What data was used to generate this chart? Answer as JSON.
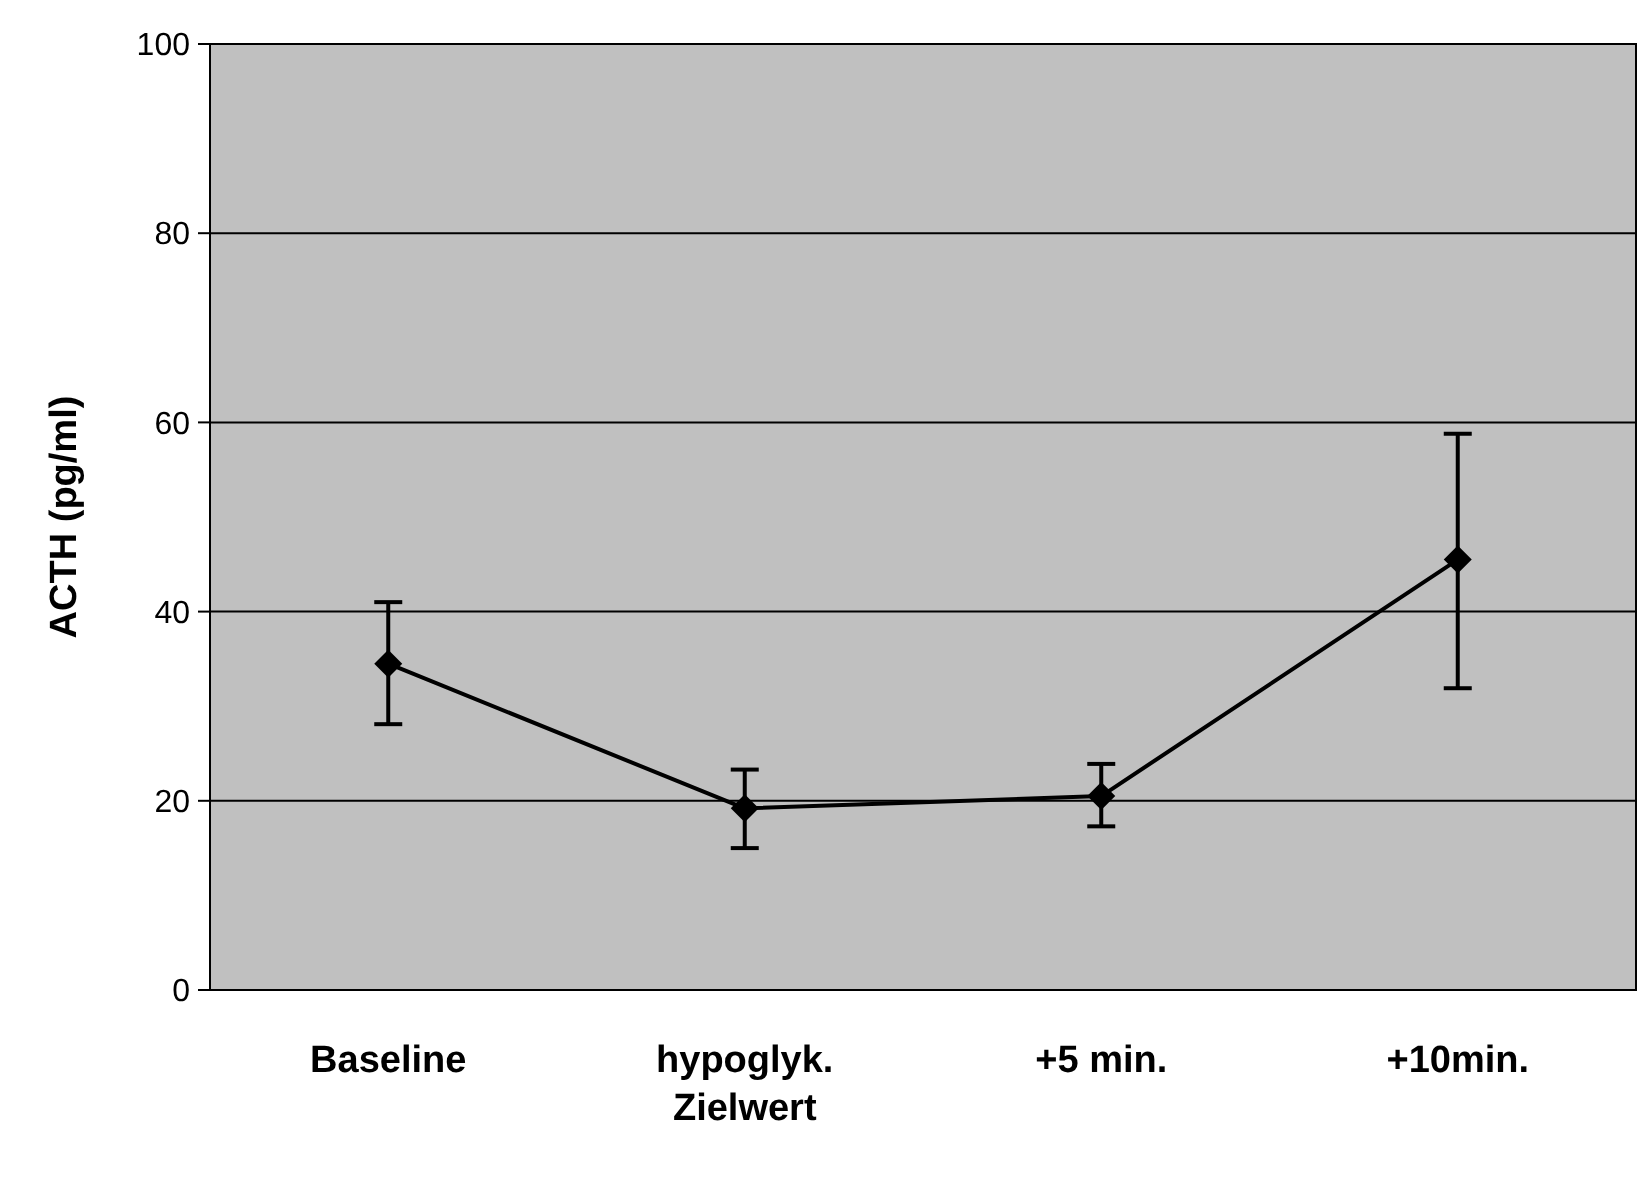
{
  "chart_data": {
    "type": "line",
    "ylabel": "ACTH (pg/ml)",
    "categories": [
      "Baseline",
      "hypoglyk.\nZielwert",
      "+5 min.",
      "+10min."
    ],
    "series": [
      {
        "color": "#000000",
        "values": [
          34.5,
          19.2,
          20.5,
          45.5
        ],
        "errors": [
          [
            28.1,
            41.0
          ],
          [
            15.0,
            23.3
          ],
          [
            17.3,
            23.9
          ],
          [
            31.9,
            58.8
          ]
        ]
      }
    ],
    "ylim": [
      0,
      100
    ],
    "yticks": [
      0,
      20,
      40,
      60,
      80,
      100
    ],
    "grid": "y",
    "marker": "diamond",
    "line_style": "solid"
  }
}
